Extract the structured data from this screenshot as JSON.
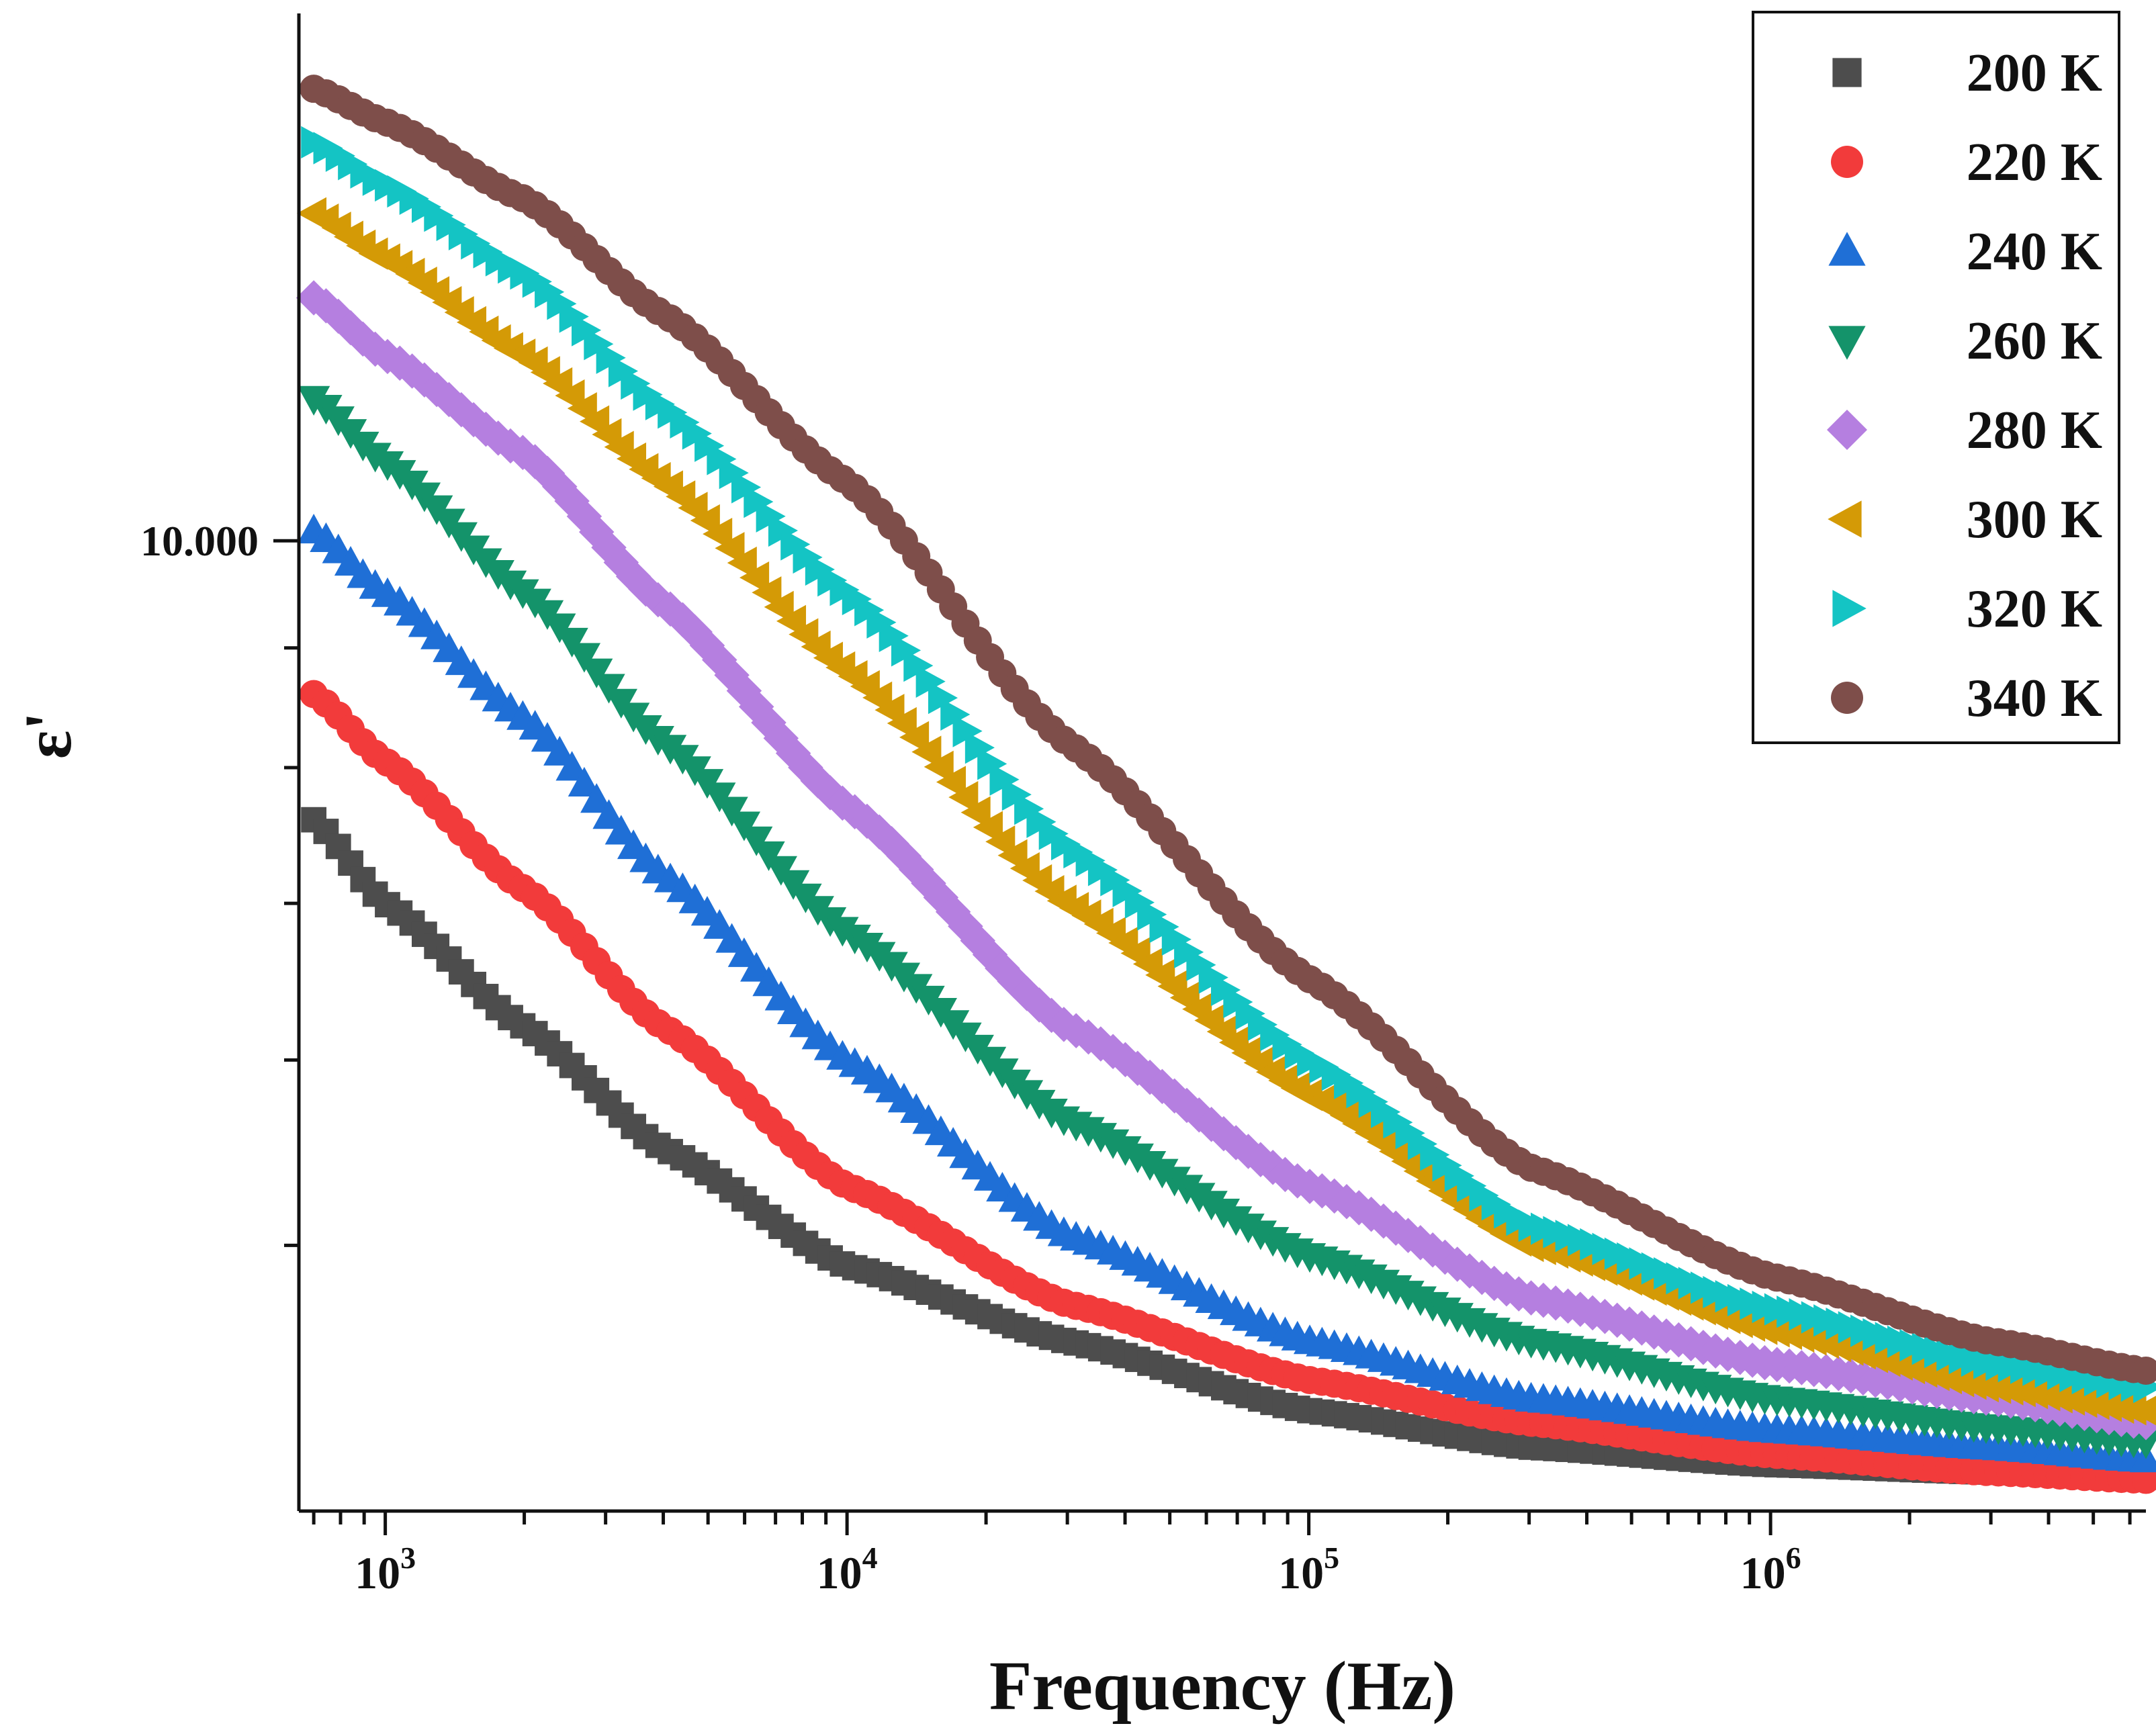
{
  "chart_data": {
    "type": "scatter",
    "title": "",
    "xlabel": "Frequency (Hz)",
    "ylabel": "ε'",
    "xscale": "log",
    "yscale": "log",
    "xlim": [
      650,
      6500000
    ],
    "ylim": [
      3.85,
      16.8
    ],
    "x_tick_labels": [
      {
        "value": 1000,
        "base": "10",
        "exp": "3"
      },
      {
        "value": 10000,
        "base": "10",
        "exp": "4"
      },
      {
        "value": 100000,
        "base": "10",
        "exp": "5"
      },
      {
        "value": 1000000,
        "base": "10",
        "exp": "6"
      }
    ],
    "y_tick_labels": [
      {
        "value": 10,
        "label": "10.000"
      }
    ],
    "y_minor_ticks": [
      5,
      6,
      7,
      8,
      9,
      20
    ],
    "legend_position": "top-right",
    "series": [
      {
        "name": "200 K",
        "color": "#4d4d4d",
        "marker": "square",
        "x": [
          700,
          1000,
          2000,
          4000,
          10000,
          30000,
          100000,
          300000,
          1000000,
          3000000,
          6500000
        ],
        "y": [
          7.6,
          7.0,
          6.2,
          5.5,
          4.9,
          4.55,
          4.25,
          4.1,
          4.03,
          4.0,
          3.98
        ]
      },
      {
        "name": "220 K",
        "color": "#f23b3b",
        "marker": "circle",
        "x": [
          700,
          1000,
          2000,
          4000,
          10000,
          30000,
          100000,
          300000,
          1000000,
          3000000,
          6500000
        ],
        "y": [
          8.6,
          8.05,
          7.1,
          6.2,
          5.3,
          4.72,
          4.38,
          4.2,
          4.07,
          4.0,
          3.97
        ]
      },
      {
        "name": "240 K",
        "color": "#1f6fd6",
        "marker": "triangle-up",
        "x": [
          700,
          1000,
          2000,
          4000,
          10000,
          30000,
          100000,
          300000,
          1000000,
          3000000,
          6500000
        ],
        "y": [
          10.1,
          9.5,
          8.4,
          7.2,
          6.0,
          5.05,
          4.55,
          4.3,
          4.17,
          4.1,
          4.05
        ]
      },
      {
        "name": "260 K",
        "color": "#14936a",
        "marker": "triangle-down",
        "x": [
          700,
          1000,
          2000,
          4000,
          10000,
          30000,
          100000,
          300000,
          1000000,
          3000000,
          6500000
        ],
        "y": [
          11.5,
          10.8,
          9.5,
          8.2,
          6.8,
          5.65,
          4.95,
          4.55,
          4.3,
          4.18,
          4.12
        ]
      },
      {
        "name": "280 K",
        "color": "#b57fe0",
        "marker": "diamond",
        "x": [
          700,
          1000,
          2000,
          4000,
          10000,
          30000,
          100000,
          300000,
          1000000,
          3000000,
          6500000
        ],
        "y": [
          12.7,
          12.0,
          10.9,
          9.4,
          7.7,
          6.2,
          5.3,
          4.75,
          4.45,
          4.3,
          4.2
        ]
      },
      {
        "name": "300 K",
        "color": "#d49a06",
        "marker": "triangle-left",
        "x": [
          700,
          1000,
          2000,
          4000,
          10000,
          30000,
          100000,
          300000,
          1000000,
          3000000,
          6500000
        ],
        "y": [
          13.8,
          13.2,
          12.0,
          10.6,
          8.8,
          7.0,
          5.8,
          5.0,
          4.6,
          4.35,
          4.25
        ]
      },
      {
        "name": "320 K",
        "color": "#14c4c4",
        "marker": "triangle-right",
        "x": [
          700,
          1000,
          2000,
          4000,
          10000,
          30000,
          100000,
          300000,
          1000000,
          3000000,
          6500000
        ],
        "y": [
          14.8,
          14.2,
          13.0,
          11.4,
          9.5,
          7.4,
          6.0,
          5.1,
          4.7,
          4.45,
          4.35
        ]
      },
      {
        "name": "340 K",
        "color": "#7e4e4a",
        "marker": "circle",
        "x": [
          700,
          1000,
          2000,
          4000,
          10000,
          30000,
          100000,
          300000,
          1000000,
          3000000,
          6500000
        ],
        "y": [
          15.6,
          15.1,
          14.0,
          12.5,
          10.6,
          8.2,
          6.5,
          5.4,
          4.85,
          4.55,
          4.42
        ]
      }
    ]
  }
}
